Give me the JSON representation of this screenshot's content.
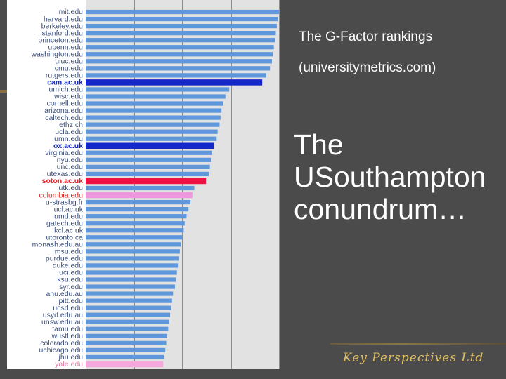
{
  "slide": {
    "caption_line_1": "The G-Factor rankings",
    "caption_line_2": "(universitymetrics.com)",
    "headline_lines": [
      "The",
      "USouthampton",
      "conundrum…"
    ],
    "brand": "Key Perspectives Ltd"
  },
  "colors": {
    "default_bar": "#5f97dd",
    "uk_highlight_bar": "#1428c8",
    "southampton_bar": "#ee1144",
    "columbia_bar": "#ee99dd",
    "yale_bar": "#f4a8dc",
    "label_default": "#3a4f7c",
    "label_uk": "#1428c8",
    "label_red": "#e62222",
    "label_pink": "#e77aa6",
    "grid_background": "#e2e2e2",
    "gridline": "#555555"
  },
  "chart_data": {
    "type": "bar",
    "orientation": "horizontal",
    "title": "",
    "xlabel": "",
    "ylabel": "",
    "xlim": [
      0,
      100
    ],
    "grid": true,
    "gridlines_x": [
      25,
      50,
      75,
      100
    ],
    "categories": [
      "mit.edu",
      "harvard.edu",
      "berkeley.edu",
      "stanford.edu",
      "princeton.edu",
      "upenn.edu",
      "washington.edu",
      "uiuc.edu",
      "cmu.edu",
      "rutgers.edu",
      "cam.ac.uk",
      "umich.edu",
      "wisc.edu",
      "cornell.edu",
      "arizona.edu",
      "caltech.edu",
      "ethz.ch",
      "ucla.edu",
      "umn.edu",
      "ox.ac.uk",
      "virginia.edu",
      "nyu.edu",
      "unc.edu",
      "utexas.edu",
      "soton.ac.uk",
      "utk.edu",
      "columbia.edu",
      "u-strasbg.fr",
      "ucl.ac.uk",
      "umd.edu",
      "gatech.edu",
      "kcl.ac.uk",
      "utoronto.ca",
      "monash.edu.au",
      "msu.edu",
      "purdue.edu",
      "duke.edu",
      "uci.edu",
      "ksu.edu",
      "syr.edu",
      "anu.edu.au",
      "pitt.edu",
      "ucsd.edu",
      "usyd.edu.au",
      "unsw.edu.au",
      "tamu.edu",
      "wustl.edu",
      "colorado.edu",
      "uchicago.edu",
      "jhu.edu",
      "yale.edu"
    ],
    "values": [
      100,
      99,
      98.5,
      98,
      97.5,
      97,
      96.5,
      96,
      95,
      93,
      91,
      74,
      72,
      71,
      70,
      69.5,
      69,
      68,
      67.5,
      66,
      65,
      64.5,
      64,
      63.5,
      62,
      56,
      55,
      54,
      53,
      52,
      51,
      50.5,
      50,
      49,
      48.5,
      48,
      47.5,
      47,
      46.5,
      46,
      45,
      44.5,
      44,
      43.5,
      43,
      42.5,
      42,
      41.5,
      41,
      40.5,
      40
    ],
    "highlight": {
      "cam.ac.uk": "uk",
      "ox.ac.uk": "uk",
      "soton.ac.uk": "southampton",
      "columbia.edu": "columbia",
      "yale.edu": "yale"
    }
  }
}
